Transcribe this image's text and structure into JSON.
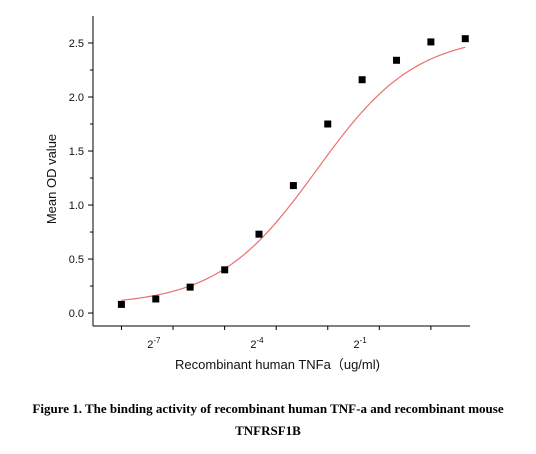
{
  "chart_data": {
    "type": "scatter",
    "x_axis": {
      "label": "Recombinant human  TNFa（ug/ml)",
      "scale": "log2",
      "ticks": [
        {
          "value": 0.0078125,
          "base": "2",
          "exp": "-7"
        },
        {
          "value": 0.0625,
          "base": "2",
          "exp": "-4"
        },
        {
          "value": 0.5,
          "base": "2",
          "exp": "-1"
        }
      ],
      "range": [
        0.0022,
        4.4
      ]
    },
    "y_axis": {
      "label": "Mean OD value",
      "ticks": [
        "0.0",
        "0.5",
        "1.0",
        "1.5",
        "2.0",
        "2.5"
      ],
      "range": [
        -0.12,
        2.75
      ]
    },
    "series": [
      {
        "marker": "square",
        "marker_color": "#000000",
        "x": [
          0.0039,
          0.0078,
          0.0156,
          0.0313,
          0.0625,
          0.125,
          0.25,
          0.5,
          1.0,
          2.0,
          4.0
        ],
        "y": [
          0.08,
          0.13,
          0.24,
          0.4,
          0.73,
          1.18,
          1.75,
          2.16,
          2.34,
          2.51,
          2.54
        ]
      }
    ],
    "fit_curve": {
      "color": "#e8706e",
      "model": "4PL",
      "bottom": 0.07,
      "top": 2.58,
      "ec50": 0.2,
      "hill": 1.0
    },
    "grid": false
  },
  "caption": {
    "line1": "Figure 1. The binding activity of recombinant human TNF-a and recombinant mouse",
    "line2": "TNFRSF1B"
  }
}
